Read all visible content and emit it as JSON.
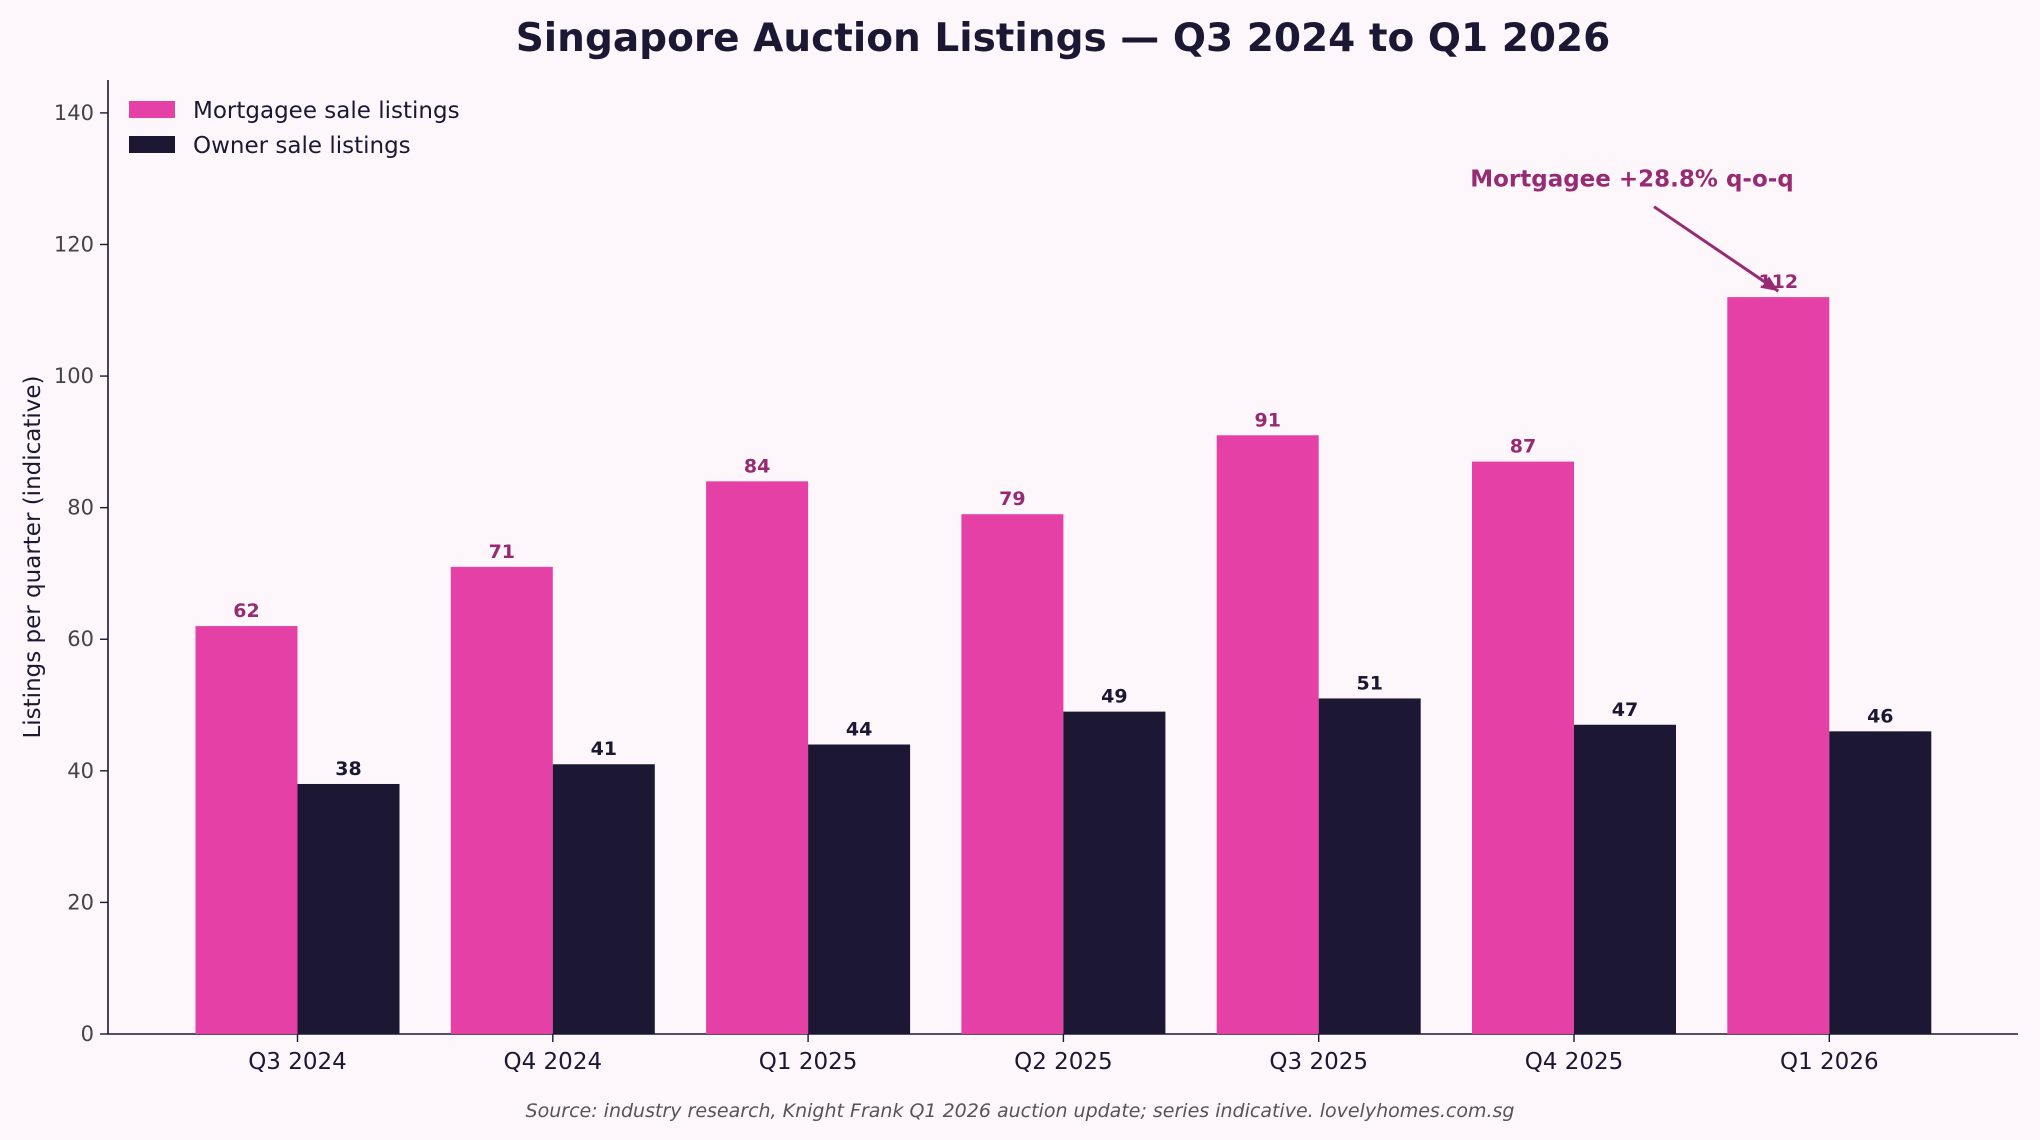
{
  "chart_data": {
    "type": "bar",
    "title": "Singapore Auction Listings — Q3 2024 to Q1 2026",
    "xlabel": "",
    "ylabel": "Listings per quarter (indicative)",
    "categories": [
      "Q3 2024",
      "Q4 2024",
      "Q1 2025",
      "Q2 2025",
      "Q3 2025",
      "Q4 2025",
      "Q1 2026"
    ],
    "series": [
      {
        "name": "Mortgagee sale listings",
        "values": [
          62,
          71,
          84,
          79,
          91,
          87,
          112
        ],
        "color": "#e540a6",
        "label_color": "#962b73"
      },
      {
        "name": "Owner sale listings",
        "values": [
          38,
          41,
          44,
          49,
          51,
          47,
          46
        ],
        "color": "#1c1833",
        "label_color": "#1c1833"
      }
    ],
    "ylim": [
      0,
      145
    ],
    "yticks": [
      0,
      20,
      40,
      60,
      80,
      100,
      120,
      140
    ],
    "grid": false,
    "legend_position": "top-left",
    "annotation": {
      "text": "Mortgagee +28.8% q-o-q",
      "category": "Q1 2026",
      "series": "Mortgagee sale listings",
      "value": 112,
      "text_y": 130
    },
    "source": "Source: industry research, Knight Frank Q1 2026 auction update; series indicative. lovelyhomes.com.sg"
  }
}
